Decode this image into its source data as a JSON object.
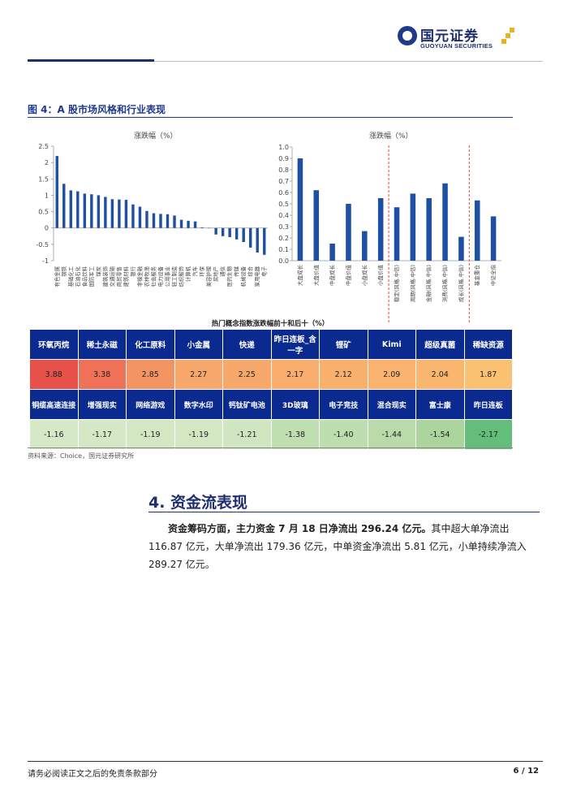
{
  "header": {
    "logo_cn": "国元证券",
    "logo_en": "GUOYUAN SECURITIES"
  },
  "figure": {
    "title": "图 4：A 股市场风格和行业表现"
  },
  "chart_data": [
    {
      "type": "bar",
      "title": "涨跌幅（%）",
      "ylim": [
        -1,
        2.5
      ],
      "yticks": [
        "2.5",
        "2",
        "1.5",
        "1",
        "0.5",
        "0",
        "-0.5",
        "-1"
      ],
      "categories": [
        "有色金属",
        "钢铁",
        "基础化工",
        "石油石化",
        "食品饮料",
        "国防军工",
        "煤炭",
        "建筑装饰",
        "交通运输",
        "商贸零售",
        "建筑材料",
        "银行",
        "非银金融",
        "农林牧渔",
        "社会服务",
        "电力设备",
        "公用事业",
        "轻工制造",
        "纺织服饰",
        "计算机",
        "汽车",
        "环保",
        "美容护理",
        "房地产",
        "通信",
        "医药生物",
        "传媒",
        "机械设备",
        "综合",
        "家用电器",
        "电子"
      ],
      "values": [
        2.2,
        1.35,
        1.15,
        1.12,
        1.05,
        1.03,
        1.0,
        0.95,
        0.88,
        0.87,
        0.86,
        0.72,
        0.65,
        0.52,
        0.45,
        0.43,
        0.42,
        0.38,
        0.25,
        0.22,
        0.2,
        0.02,
        -0.01,
        -0.2,
        -0.25,
        -0.28,
        -0.35,
        -0.43,
        -0.6,
        -0.75,
        -0.82
      ],
      "color": "#1f4fa3"
    },
    {
      "type": "bar",
      "title": "涨跌幅（%）",
      "ylim": [
        0,
        1.0
      ],
      "yticks": [
        "1.0",
        "0.9",
        "0.8",
        "0.7",
        "0.6",
        "0.5",
        "0.4",
        "0.3",
        "0.2",
        "0.1",
        "0.0"
      ],
      "categories": [
        "大盘成长",
        "大盘价值",
        "中盘成长",
        "中盘价值",
        "小盘成长",
        "小盘价值",
        "稳定(风格.中信)",
        "周期(风格.中信)",
        "金融(风格.中信)",
        "消费(风格.中信)",
        "成长(风格.中信)",
        "基金重仓",
        "中证全指"
      ],
      "values": [
        0.9,
        0.62,
        0.15,
        0.5,
        0.26,
        0.55,
        0.47,
        0.59,
        0.55,
        0.68,
        0.21,
        0.53,
        0.39
      ],
      "dividers_after": [
        5,
        10
      ],
      "color": "#1f4fa3",
      "divider_color": "#e04b3a"
    },
    {
      "type": "table",
      "title": "热门概念指数涨跌幅前十和后十（%）",
      "top10": [
        {
          "name": "环氧丙烷",
          "value": "3.88",
          "color": "#e8514a"
        },
        {
          "name": "稀土永磁",
          "value": "3.38",
          "color": "#ef7157"
        },
        {
          "name": "化工原料",
          "value": "2.85",
          "color": "#f59463"
        },
        {
          "name": "小金属",
          "value": "2.27",
          "color": "#f7a86a"
        },
        {
          "name": "快递",
          "value": "2.25",
          "color": "#f7a86a"
        },
        {
          "name": "昨日连板_含一字",
          "value": "2.17",
          "color": "#f8ad6c"
        },
        {
          "name": "锂矿",
          "value": "2.12",
          "color": "#f8b06d"
        },
        {
          "name": "Kimi",
          "value": "2.09",
          "color": "#f9b36e"
        },
        {
          "name": "超级真菌",
          "value": "2.04",
          "color": "#fab66f"
        },
        {
          "name": "稀缺资源",
          "value": "1.87",
          "color": "#fbc172"
        }
      ],
      "bottom10": [
        {
          "name": "铜缆高速连接",
          "value": "-1.16",
          "color": "#d6e9c7"
        },
        {
          "name": "增强现实",
          "value": "-1.17",
          "color": "#d5e8c5"
        },
        {
          "name": "网络游戏",
          "value": "-1.19",
          "color": "#d3e7c3"
        },
        {
          "name": "数字水印",
          "value": "-1.19",
          "color": "#d3e7c3"
        },
        {
          "name": "钙钛矿电池",
          "value": "-1.21",
          "color": "#d0e6c0"
        },
        {
          "name": "3D玻璃",
          "value": "-1.38",
          "color": "#bfdfb0"
        },
        {
          "name": "电子竞技",
          "value": "-1.40",
          "color": "#bddeae"
        },
        {
          "name": "混合现实",
          "value": "-1.44",
          "color": "#b8dba9"
        },
        {
          "name": "富士康",
          "value": "-1.54",
          "color": "#acd59e"
        },
        {
          "name": "昨日连板",
          "value": "-2.17",
          "color": "#63be7b"
        }
      ]
    }
  ],
  "source": "资料来源：Choice，国元证券研究所",
  "section": {
    "title": "4. 资金流表现",
    "para_bold": "资金筹码方面，主力资金 7 月 18 日净流出 296.24 亿元。",
    "para_rest": "其中超大单净流出 116.87 亿元，大单净流出 179.36 亿元，中单资金净流出 5.81 亿元，小单持续净流入 289.27 亿元。"
  },
  "footer": {
    "disclaimer": "请务必阅读正文之后的免责条款部分",
    "page": "6 / 12"
  }
}
